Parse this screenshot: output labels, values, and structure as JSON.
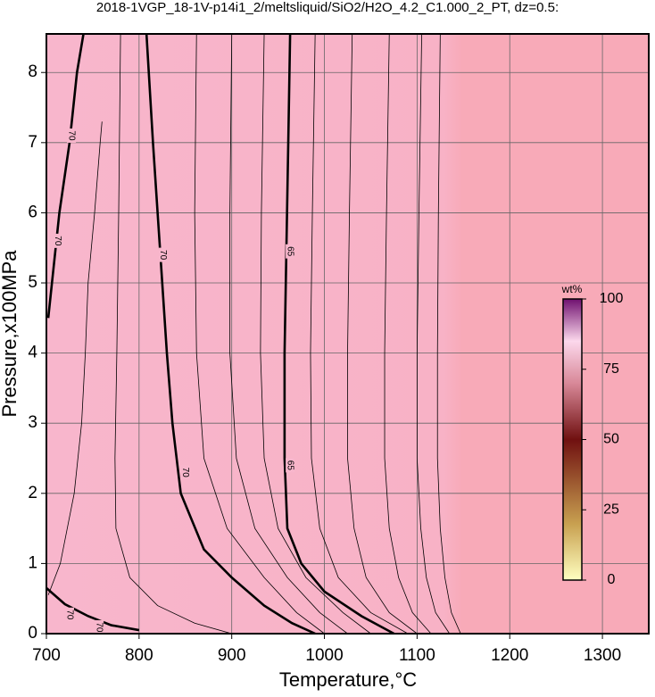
{
  "chart_data": {
    "type": "contour",
    "title": "2018-1VGP_18-1V-p14i1_2/meltsliquid/SiO2/H2O_4.2_C1.000_2_PT, dz=0.5:",
    "xlabel": "Temperature,°C",
    "ylabel": "Pressure,x100MPa",
    "xlim": [
      700,
      1350
    ],
    "ylim": [
      0,
      8.55
    ],
    "xticks": [
      700,
      800,
      900,
      1000,
      1100,
      1200,
      1300
    ],
    "yticks": [
      0,
      1,
      2,
      3,
      4,
      5,
      6,
      7,
      8
    ],
    "grid": true,
    "contours": [
      {
        "level": 70,
        "x": [
          808,
          815,
          820,
          825,
          830,
          836,
          845,
          870,
          900,
          935,
          965,
          990
        ],
        "y": [
          8.55,
          7,
          6,
          5,
          4,
          3,
          2,
          1.2,
          0.8,
          0.4,
          0.15,
          0
        ]
      },
      {
        "level": 65,
        "x": [
          963,
          961,
          959,
          957,
          957,
          960,
          975,
          1000,
          1040,
          1075
        ],
        "y": [
          8.55,
          7,
          5.5,
          4,
          2.5,
          1.5,
          1,
          0.6,
          0.25,
          0
        ]
      },
      {
        "level": 70,
        "x": [
          740,
          733,
          725,
          714,
          706,
          702
        ],
        "y": [
          8.55,
          8,
          7,
          6,
          5,
          4.5
        ]
      },
      {
        "level": 70,
        "x": [
          700,
          720,
          745,
          770,
          800
        ],
        "y": [
          0.65,
          0.42,
          0.25,
          0.12,
          0.05
        ]
      },
      {
        "level": 69.5,
        "x": [
          760,
          758,
          752,
          745,
          742,
          738,
          730,
          715,
          702
        ],
        "y": [
          7.3,
          7,
          6,
          5,
          4,
          3,
          2,
          1,
          0.55
        ]
      },
      {
        "level": 68.5,
        "x": [
          862,
          860,
          862,
          870,
          895,
          935,
          970,
          1000
        ],
        "y": [
          8.55,
          6,
          4,
          2.5,
          1.5,
          0.8,
          0.3,
          0
        ]
      },
      {
        "level": 67.5,
        "x": [
          900,
          898,
          898,
          905,
          925,
          960,
          995,
          1025
        ],
        "y": [
          8.55,
          6,
          4,
          2.5,
          1.5,
          0.8,
          0.3,
          0
        ]
      },
      {
        "level": 66.5,
        "x": [
          935,
          932,
          931,
          935,
          950,
          980,
          1020,
          1050
        ],
        "y": [
          8.55,
          6,
          4,
          2.5,
          1.5,
          0.8,
          0.3,
          0
        ]
      },
      {
        "level": 64.5,
        "x": [
          990,
          987,
          985,
          986,
          995,
          1015,
          1050,
          1090
        ],
        "y": [
          8.55,
          6,
          4,
          2.5,
          1.5,
          0.8,
          0.3,
          0
        ]
      },
      {
        "level": 63.5,
        "x": [
          1030,
          1027,
          1025,
          1025,
          1032,
          1045,
          1070,
          1100
        ],
        "y": [
          8.55,
          6,
          4,
          2.5,
          1.5,
          0.8,
          0.3,
          0
        ]
      },
      {
        "level": 62.5,
        "x": [
          1070,
          1067,
          1065,
          1065,
          1070,
          1080,
          1095,
          1115
        ],
        "y": [
          8.55,
          6,
          4,
          2.5,
          1.5,
          0.8,
          0.3,
          0
        ]
      },
      {
        "level": 61.5,
        "x": [
          1105,
          1102,
          1100,
          1100,
          1104,
          1110,
          1120,
          1135
        ],
        "y": [
          8.55,
          6,
          4,
          2.5,
          1.5,
          0.8,
          0.3,
          0
        ]
      },
      {
        "level": 60.5,
        "x": [
          1125,
          1123,
          1122,
          1122,
          1125,
          1130,
          1137,
          1147
        ],
        "y": [
          8.55,
          6,
          4,
          2.5,
          1.5,
          0.8,
          0.3,
          0
        ]
      },
      {
        "level": 69,
        "x": [
          780,
          778,
          776,
          774,
          775,
          790,
          820,
          860,
          900
        ],
        "y": [
          8.55,
          6,
          4,
          2.5,
          1.5,
          0.8,
          0.4,
          0.15,
          0
        ]
      }
    ],
    "contour_labels": [
      {
        "level": 70,
        "x": [
          826
        ],
        "y": [
          5.4
        ]
      },
      {
        "level": 70,
        "x": [
          850
        ],
        "y": [
          2.3
        ]
      },
      {
        "level": 65,
        "x": [
          963
        ],
        "y": [
          5.45
        ]
      },
      {
        "level": 65,
        "x": [
          963
        ],
        "y": [
          2.4
        ]
      },
      {
        "level": 70,
        "x": [
          712
        ],
        "y": [
          5.6
        ]
      },
      {
        "level": 70,
        "x": [
          727
        ],
        "y": [
          7.1
        ]
      },
      {
        "level": 70,
        "x": [
          725
        ],
        "y": [
          0.27
        ]
      },
      {
        "level": 70,
        "x": [
          757
        ],
        "y": [
          0.09
        ]
      }
    ],
    "colorbar": {
      "label": "wt%",
      "lim": [
        0,
        100
      ],
      "ticks": [
        0,
        25,
        50,
        75,
        100
      ]
    }
  }
}
